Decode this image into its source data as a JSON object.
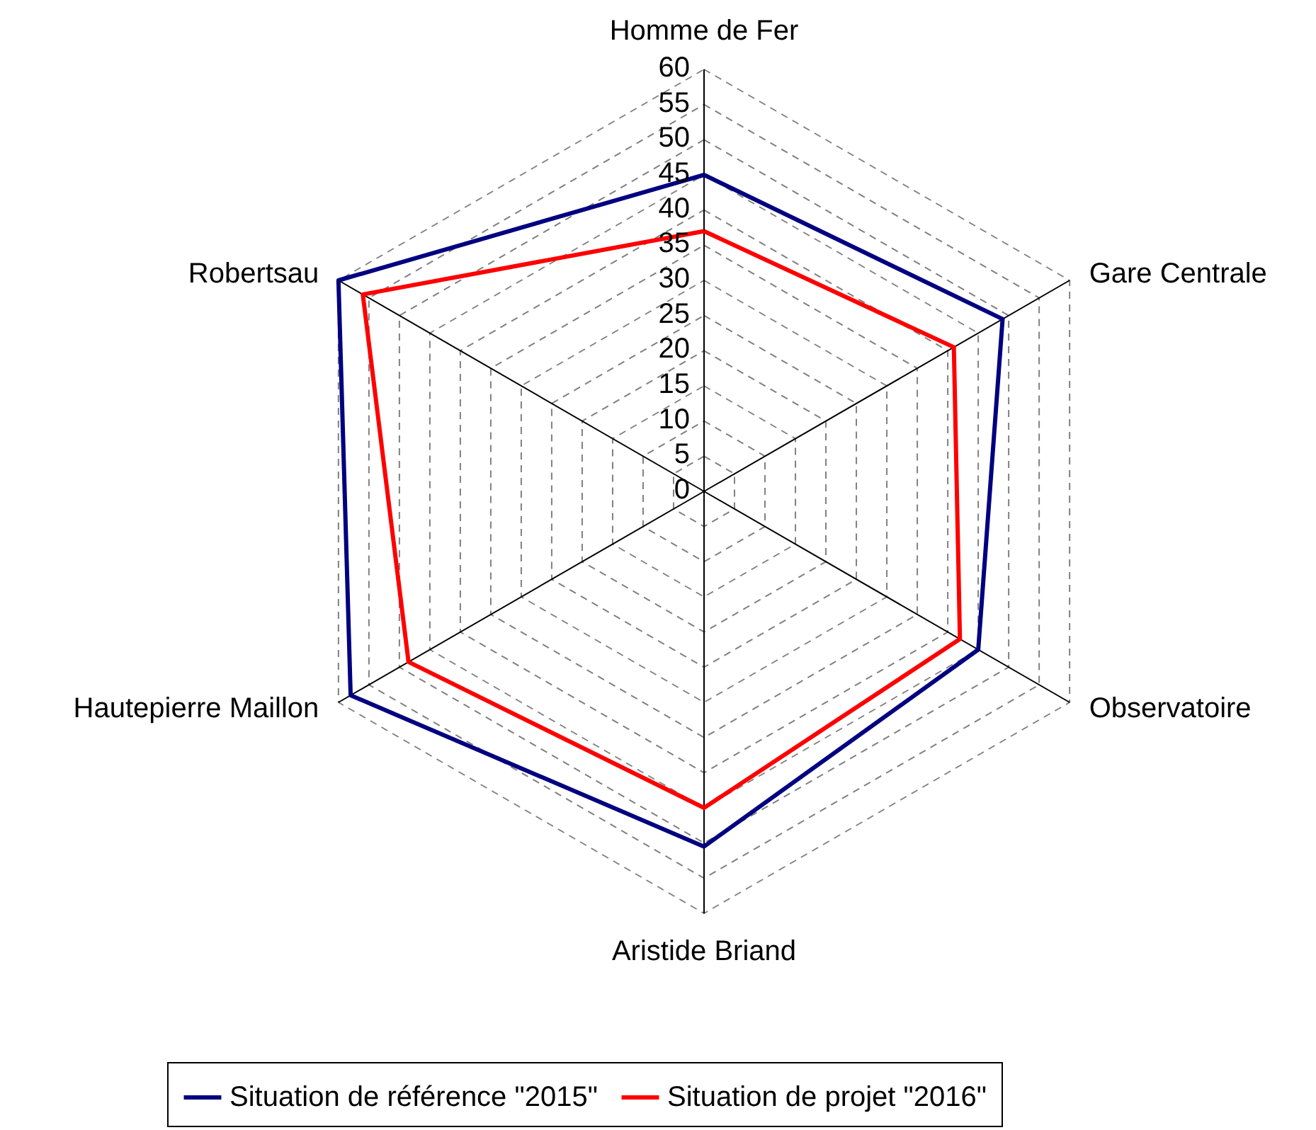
{
  "chart_data": {
    "type": "radar",
    "categories": [
      "Homme de Fer",
      "Gare Centrale",
      "Observatoire",
      "Aristide Briand",
      "Hautepierre Maillon",
      "Robertsau"
    ],
    "series": [
      {
        "name": "Situation de référence \"2015\"",
        "color": "#000080",
        "values": [
          45,
          49,
          45,
          50.5,
          58,
          60
        ]
      },
      {
        "name": "Situation de projet \"2016\"",
        "color": "#ff0000",
        "values": [
          37,
          41,
          42,
          45,
          48.5,
          56
        ]
      }
    ],
    "ylim": [
      0,
      60
    ],
    "yticks": [
      0,
      5,
      10,
      15,
      20,
      25,
      30,
      35,
      40,
      45,
      50,
      55,
      60
    ],
    "grid": true,
    "legend": "bottom",
    "marker": "none",
    "line_style": "solid"
  }
}
